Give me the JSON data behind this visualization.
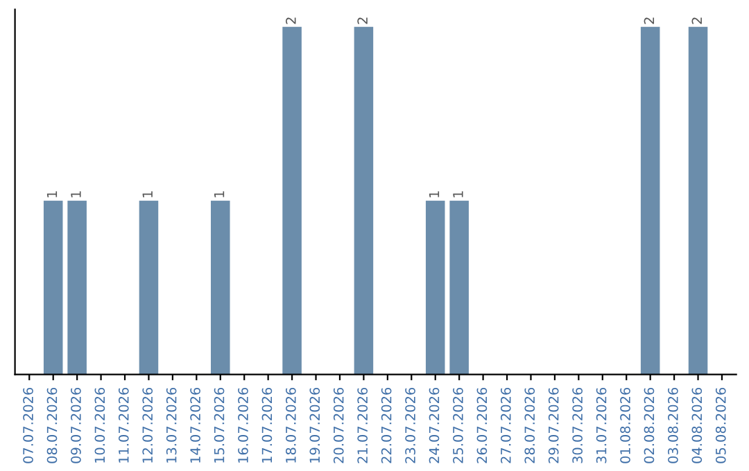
{
  "chart_data": {
    "type": "bar",
    "categories": [
      "07.07.2026",
      "08.07.2026",
      "09.07.2026",
      "10.07.2026",
      "11.07.2026",
      "12.07.2026",
      "13.07.2026",
      "14.07.2026",
      "15.07.2026",
      "16.07.2026",
      "17.07.2026",
      "18.07.2026",
      "19.07.2026",
      "20.07.2026",
      "21.07.2026",
      "22.07.2026",
      "23.07.2026",
      "24.07.2026",
      "25.07.2026",
      "26.07.2026",
      "27.07.2026",
      "28.07.2026",
      "29.07.2026",
      "30.07.2026",
      "31.07.2026",
      "01.08.2026",
      "02.08.2026",
      "03.08.2026",
      "04.08.2026",
      "05.08.2026"
    ],
    "values": [
      0,
      1,
      1,
      0,
      0,
      1,
      0,
      0,
      1,
      0,
      0,
      2,
      0,
      0,
      2,
      0,
      0,
      1,
      1,
      0,
      0,
      0,
      0,
      0,
      0,
      0,
      2,
      0,
      2,
      0
    ],
    "value_labels": [
      null,
      "1",
      "1",
      null,
      null,
      "1",
      null,
      null,
      "1",
      null,
      null,
      "2",
      null,
      null,
      "2",
      null,
      null,
      "1",
      "1",
      null,
      null,
      null,
      null,
      null,
      null,
      null,
      "2",
      null,
      "2",
      null
    ],
    "color": "#6b8dab",
    "ylim": [
      0,
      2.1
    ],
    "tick_labels": "x",
    "grid": false,
    "legend": false
  }
}
